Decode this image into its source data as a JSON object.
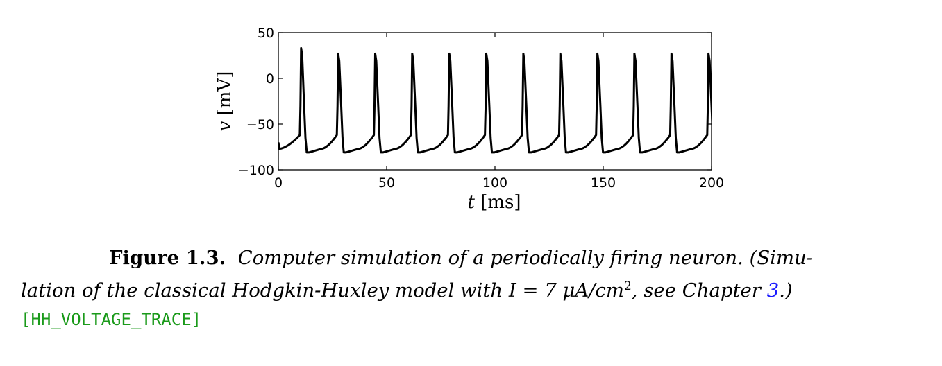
{
  "chart_data": {
    "type": "line",
    "title": "",
    "xlabel_var": "t",
    "xlabel_unit": "[ms]",
    "ylabel_var": "v",
    "ylabel_unit": "[mV]",
    "xlim": [
      0,
      200
    ],
    "ylim": [
      -100,
      50
    ],
    "xticks": [
      "0",
      "50",
      "100",
      "150",
      "200"
    ],
    "yticks": [
      "50",
      "0",
      "−50",
      "−100"
    ],
    "grid": false,
    "line_color": "#000000",
    "series": [
      {
        "spike_times_ms": [
          10.5,
          27.6,
          44.7,
          61.8,
          78.9,
          96.0,
          113.1,
          130.2,
          147.3,
          164.4,
          181.5,
          198.6
        ],
        "first_spike_peak_mv": 33,
        "spike_peak_mv": 27,
        "trough_mv": -81,
        "pre_spike_mv": -62,
        "start_mv": -70
      }
    ]
  },
  "caption": {
    "label": "Figure 1.3.",
    "line1_text": "Computer simulation of a periodically firing neuron. (Simu-",
    "line2_part1": "lation of the classical Hodgkin-Huxley model with I = 7 μA/cm",
    "line2_sup": "2",
    "line2_part2": ", see Chapter ",
    "chapter_ref": "3",
    "line2_end": ".)",
    "code_tag": "[HH_VOLTAGE_TRACE]"
  }
}
